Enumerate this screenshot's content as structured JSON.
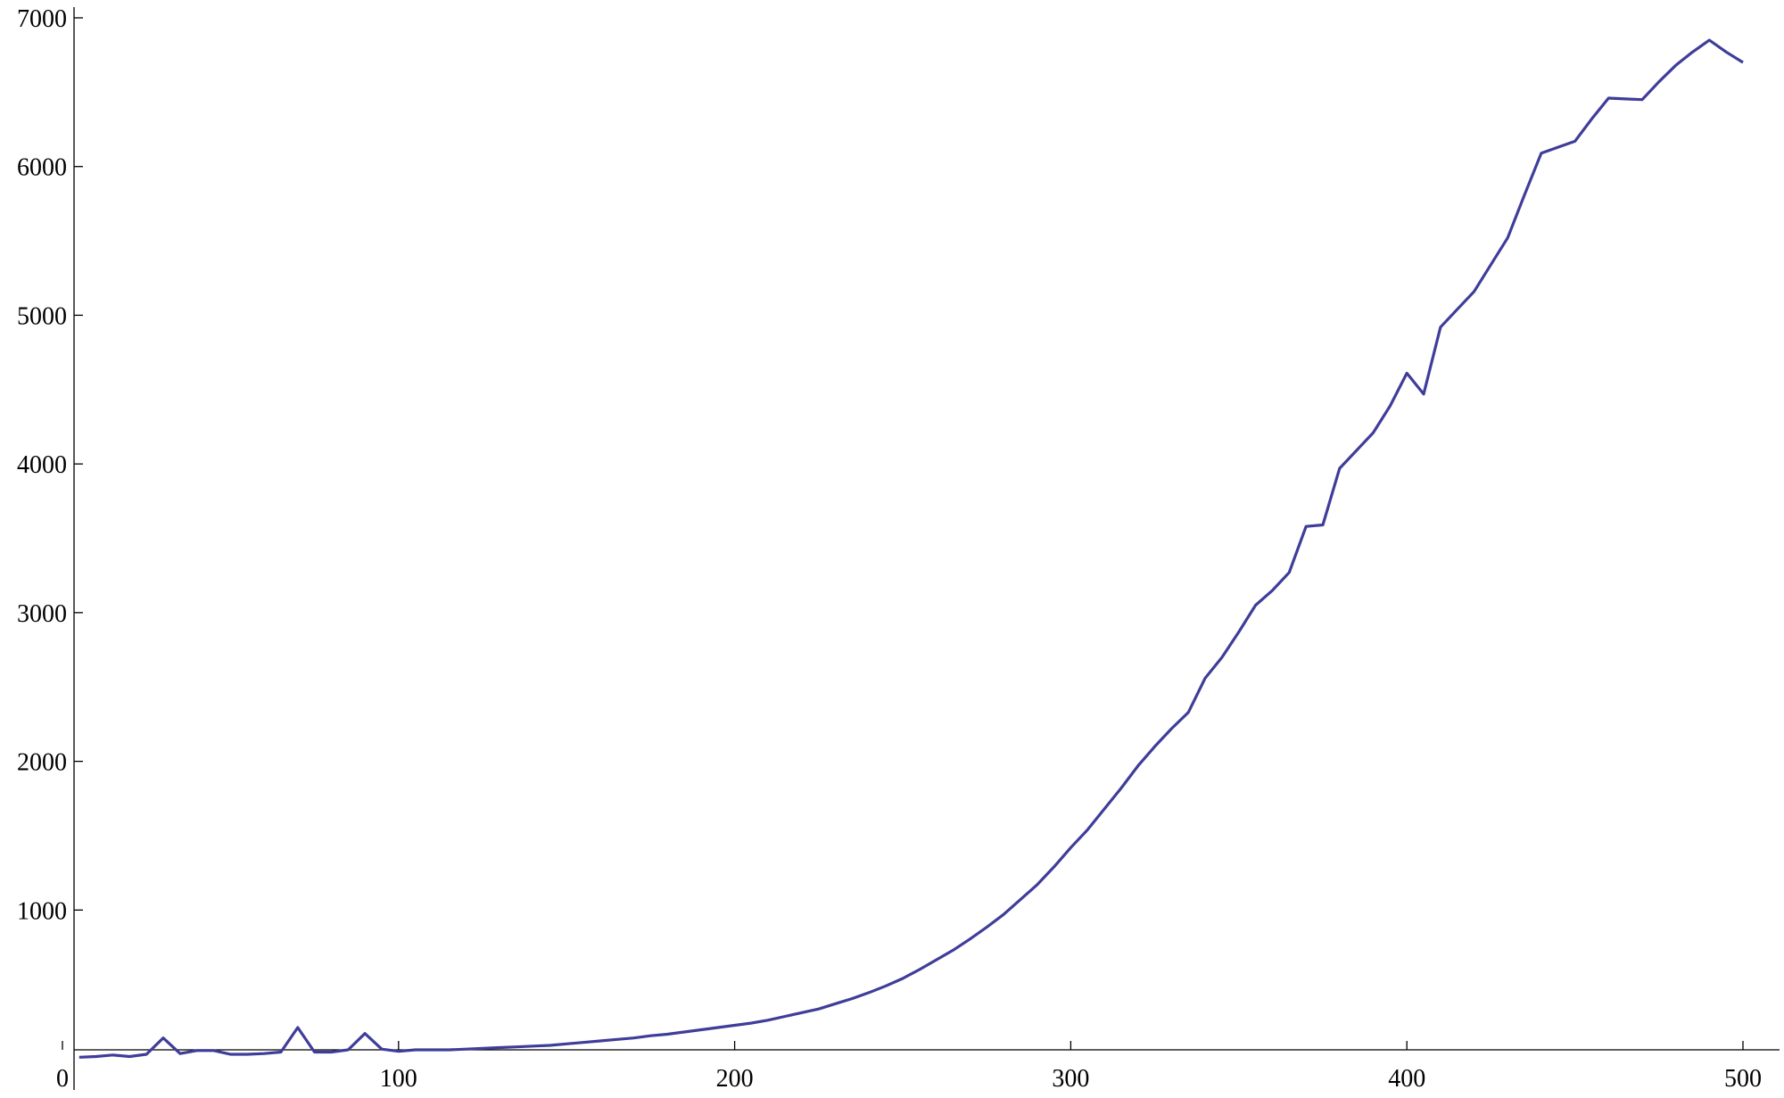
{
  "chart_data": {
    "type": "line",
    "x": [
      5,
      10,
      15,
      20,
      25,
      30,
      35,
      40,
      45,
      50,
      55,
      60,
      65,
      70,
      75,
      80,
      85,
      90,
      95,
      100,
      105,
      110,
      115,
      120,
      125,
      130,
      135,
      140,
      145,
      150,
      155,
      160,
      165,
      170,
      175,
      180,
      185,
      190,
      195,
      200,
      205,
      210,
      215,
      220,
      225,
      230,
      235,
      240,
      245,
      250,
      255,
      260,
      265,
      270,
      275,
      280,
      285,
      290,
      295,
      300,
      305,
      310,
      315,
      320,
      325,
      330,
      335,
      340,
      345,
      350,
      355,
      360,
      365,
      370,
      375,
      380,
      385,
      390,
      395,
      400,
      405,
      410,
      415,
      420,
      425,
      430,
      435,
      440,
      445,
      450,
      455,
      460,
      465,
      470,
      475,
      480,
      485,
      490,
      495,
      500
    ],
    "series": [
      {
        "color": "#3f3d99",
        "values": [
          10,
          15,
          25,
          15,
          30,
          140,
          35,
          55,
          55,
          30,
          30,
          35,
          45,
          210,
          45,
          45,
          60,
          170,
          65,
          50,
          60,
          60,
          60,
          65,
          70,
          75,
          80,
          85,
          90,
          100,
          110,
          120,
          130,
          140,
          155,
          165,
          180,
          195,
          210,
          225,
          240,
          260,
          285,
          310,
          335,
          370,
          405,
          445,
          490,
          540,
          600,
          665,
          730,
          805,
          885,
          970,
          1070,
          1170,
          1290,
          1420,
          1540,
          1680,
          1820,
          1970,
          2100,
          2220,
          2330,
          2560,
          2700,
          2870,
          3050,
          3150,
          3270,
          3580,
          3590,
          3970,
          4090,
          4210,
          4390,
          4610,
          4470,
          4920,
          5040,
          5160,
          5340,
          5520,
          5810,
          6090,
          6130,
          6170,
          6320,
          6460,
          6455,
          6450,
          6570,
          6680,
          6770,
          6850,
          6770,
          6700
        ]
      }
    ],
    "xlim": [
      0,
      500
    ],
    "ylim": [
      0,
      7000
    ],
    "xticks": [
      0,
      100,
      200,
      300,
      400,
      500
    ],
    "yticks": [
      1000,
      2000,
      3000,
      4000,
      5000,
      6000,
      7000
    ]
  }
}
